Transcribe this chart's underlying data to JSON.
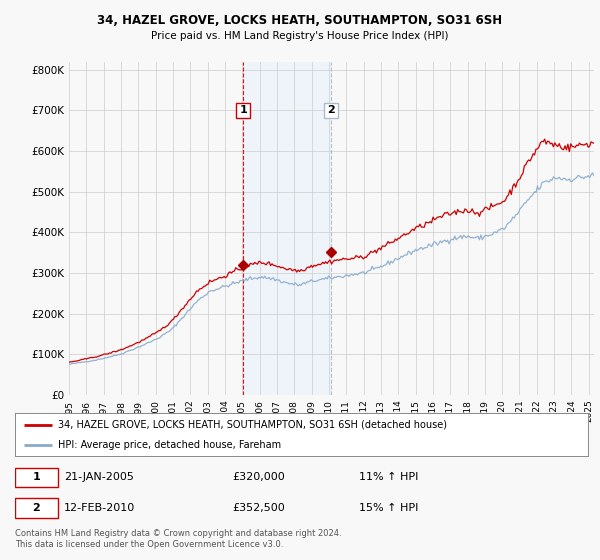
{
  "title1": "34, HAZEL GROVE, LOCKS HEATH, SOUTHAMPTON, SO31 6SH",
  "title2": "Price paid vs. HM Land Registry's House Price Index (HPI)",
  "ylim": [
    0,
    820000
  ],
  "yticks": [
    0,
    100000,
    200000,
    300000,
    400000,
    500000,
    600000,
    700000,
    800000
  ],
  "ytick_labels": [
    "£0",
    "£100K",
    "£200K",
    "£300K",
    "£400K",
    "£500K",
    "£600K",
    "£700K",
    "£800K"
  ],
  "legend_line1": "34, HAZEL GROVE, LOCKS HEATH, SOUTHAMPTON, SO31 6SH (detached house)",
  "legend_line2": "HPI: Average price, detached house, Fareham",
  "sale1_date": "21-JAN-2005",
  "sale1_price": "£320,000",
  "sale1_hpi": "11% ↑ HPI",
  "sale2_date": "12-FEB-2010",
  "sale2_price": "£352,500",
  "sale2_hpi": "15% ↑ HPI",
  "footer": "Contains HM Land Registry data © Crown copyright and database right 2024.\nThis data is licensed under the Open Government Licence v3.0.",
  "line_color_red": "#cc0000",
  "line_color_blue": "#88aacc",
  "sale_marker_color": "#aa0000",
  "vline_color1": "#cc0000",
  "vline_color2": "#aabbcc",
  "shaded_color": "#ddeeff",
  "background_color": "#f8f8f8",
  "grid_color": "#cccccc",
  "sale1_x": 2005.05,
  "sale1_y": 320000,
  "sale2_x": 2010.12,
  "sale2_y": 352500,
  "xmin": 1995,
  "xmax": 2025.3
}
